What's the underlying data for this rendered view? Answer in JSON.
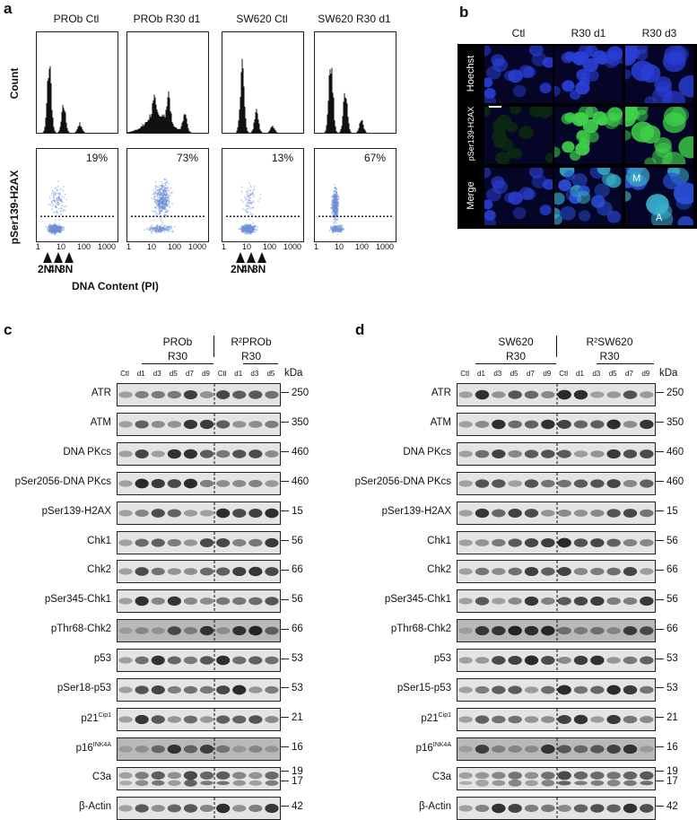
{
  "panels": {
    "a": "a",
    "b": "b",
    "c": "c",
    "d": "d"
  },
  "panel_a": {
    "columns": [
      "PROb Ctl",
      "PROb R30 d1",
      "SW620 Ctl",
      "SW620 R30 d1"
    ],
    "row_labels": {
      "count": "Count",
      "h2ax": "pSer139-H2AX"
    },
    "percentages": [
      "19%",
      "73%",
      "13%",
      "67%"
    ],
    "x_ticks": [
      "1",
      "10",
      "100",
      "1000"
    ],
    "ploidy_marks": [
      "2N",
      "4N",
      "8N"
    ],
    "xlabel": "DNA Content (PI)"
  },
  "panel_b": {
    "columns": [
      "Ctl",
      "R30 d1",
      "R30 d3"
    ],
    "rows": [
      "Hoechst",
      "pSer139-H2AX",
      "Merge"
    ],
    "annotations": [
      "M",
      "A"
    ]
  },
  "panel_c": {
    "group1": "PROb",
    "group1_sub": "R30",
    "group2": "R²PROb",
    "group2_sub": "R30",
    "lanes": [
      "Ctl",
      "d1",
      "d3",
      "d5",
      "d7",
      "d9",
      "Ctl",
      "d1",
      "d3",
      "d5"
    ],
    "kda_label": "kDa",
    "blots": [
      {
        "label": "ATR",
        "kda": "250"
      },
      {
        "label": "ATM",
        "kda": "350"
      },
      {
        "label": "DNA PKcs",
        "kda": "460"
      },
      {
        "label": "pSer2056-DNA PKcs",
        "kda": "460"
      },
      {
        "label": "pSer139-H2AX",
        "kda": "15"
      },
      {
        "label": "Chk1",
        "kda": "56"
      },
      {
        "label": "Chk2",
        "kda": "66"
      },
      {
        "label": "pSer345-Chk1",
        "kda": "56"
      },
      {
        "label": "pThr68-Chk2",
        "kda": "66"
      },
      {
        "label": "p53",
        "kda": "53"
      },
      {
        "label": "pSer18-p53",
        "kda": "53"
      },
      {
        "label": "p21",
        "sup": "Cip1",
        "kda": "21"
      },
      {
        "label": "p16",
        "sup": "INK4A",
        "kda": "16"
      },
      {
        "label": "C3a",
        "kda": "19",
        "kda2": "17"
      },
      {
        "label": "β-Actin",
        "kda": "42"
      }
    ]
  },
  "panel_d": {
    "group1": "SW620",
    "group1_sub": "R30",
    "group2": "R²SW620",
    "group2_sub": "R30",
    "lanes": [
      "Ctl",
      "d1",
      "d3",
      "d5",
      "d7",
      "d9",
      "Ctl",
      "d1",
      "d3",
      "d5",
      "d7",
      "d9"
    ],
    "kda_label": "kDa",
    "blots": [
      {
        "label": "ATR",
        "kda": "250"
      },
      {
        "label": "ATM",
        "kda": "350"
      },
      {
        "label": "DNA PKcs",
        "kda": "460"
      },
      {
        "label": "pSer2056-DNA PKcs",
        "kda": "460"
      },
      {
        "label": "pSer139-H2AX",
        "kda": "15"
      },
      {
        "label": "Chk1",
        "kda": "56"
      },
      {
        "label": "Chk2",
        "kda": "66"
      },
      {
        "label": "pSer345-Chk1",
        "kda": "56"
      },
      {
        "label": "pThr68-Chk2",
        "kda": "66"
      },
      {
        "label": "p53",
        "kda": "53"
      },
      {
        "label": "pSer15-p53",
        "kda": "53"
      },
      {
        "label": "p21",
        "sup": "Cip1",
        "kda": "21"
      },
      {
        "label": "p16",
        "sup": "INK4A",
        "kda": "16"
      },
      {
        "label": "C3a",
        "kda": "19",
        "kda2": "17"
      },
      {
        "label": "β-Actin",
        "kda": "42"
      }
    ]
  },
  "colors": {
    "scatter": "#6f8fd6",
    "hoechst": "#2a3fd8",
    "h2ax": "#3fd24a",
    "merge": "#3ab0c8"
  }
}
